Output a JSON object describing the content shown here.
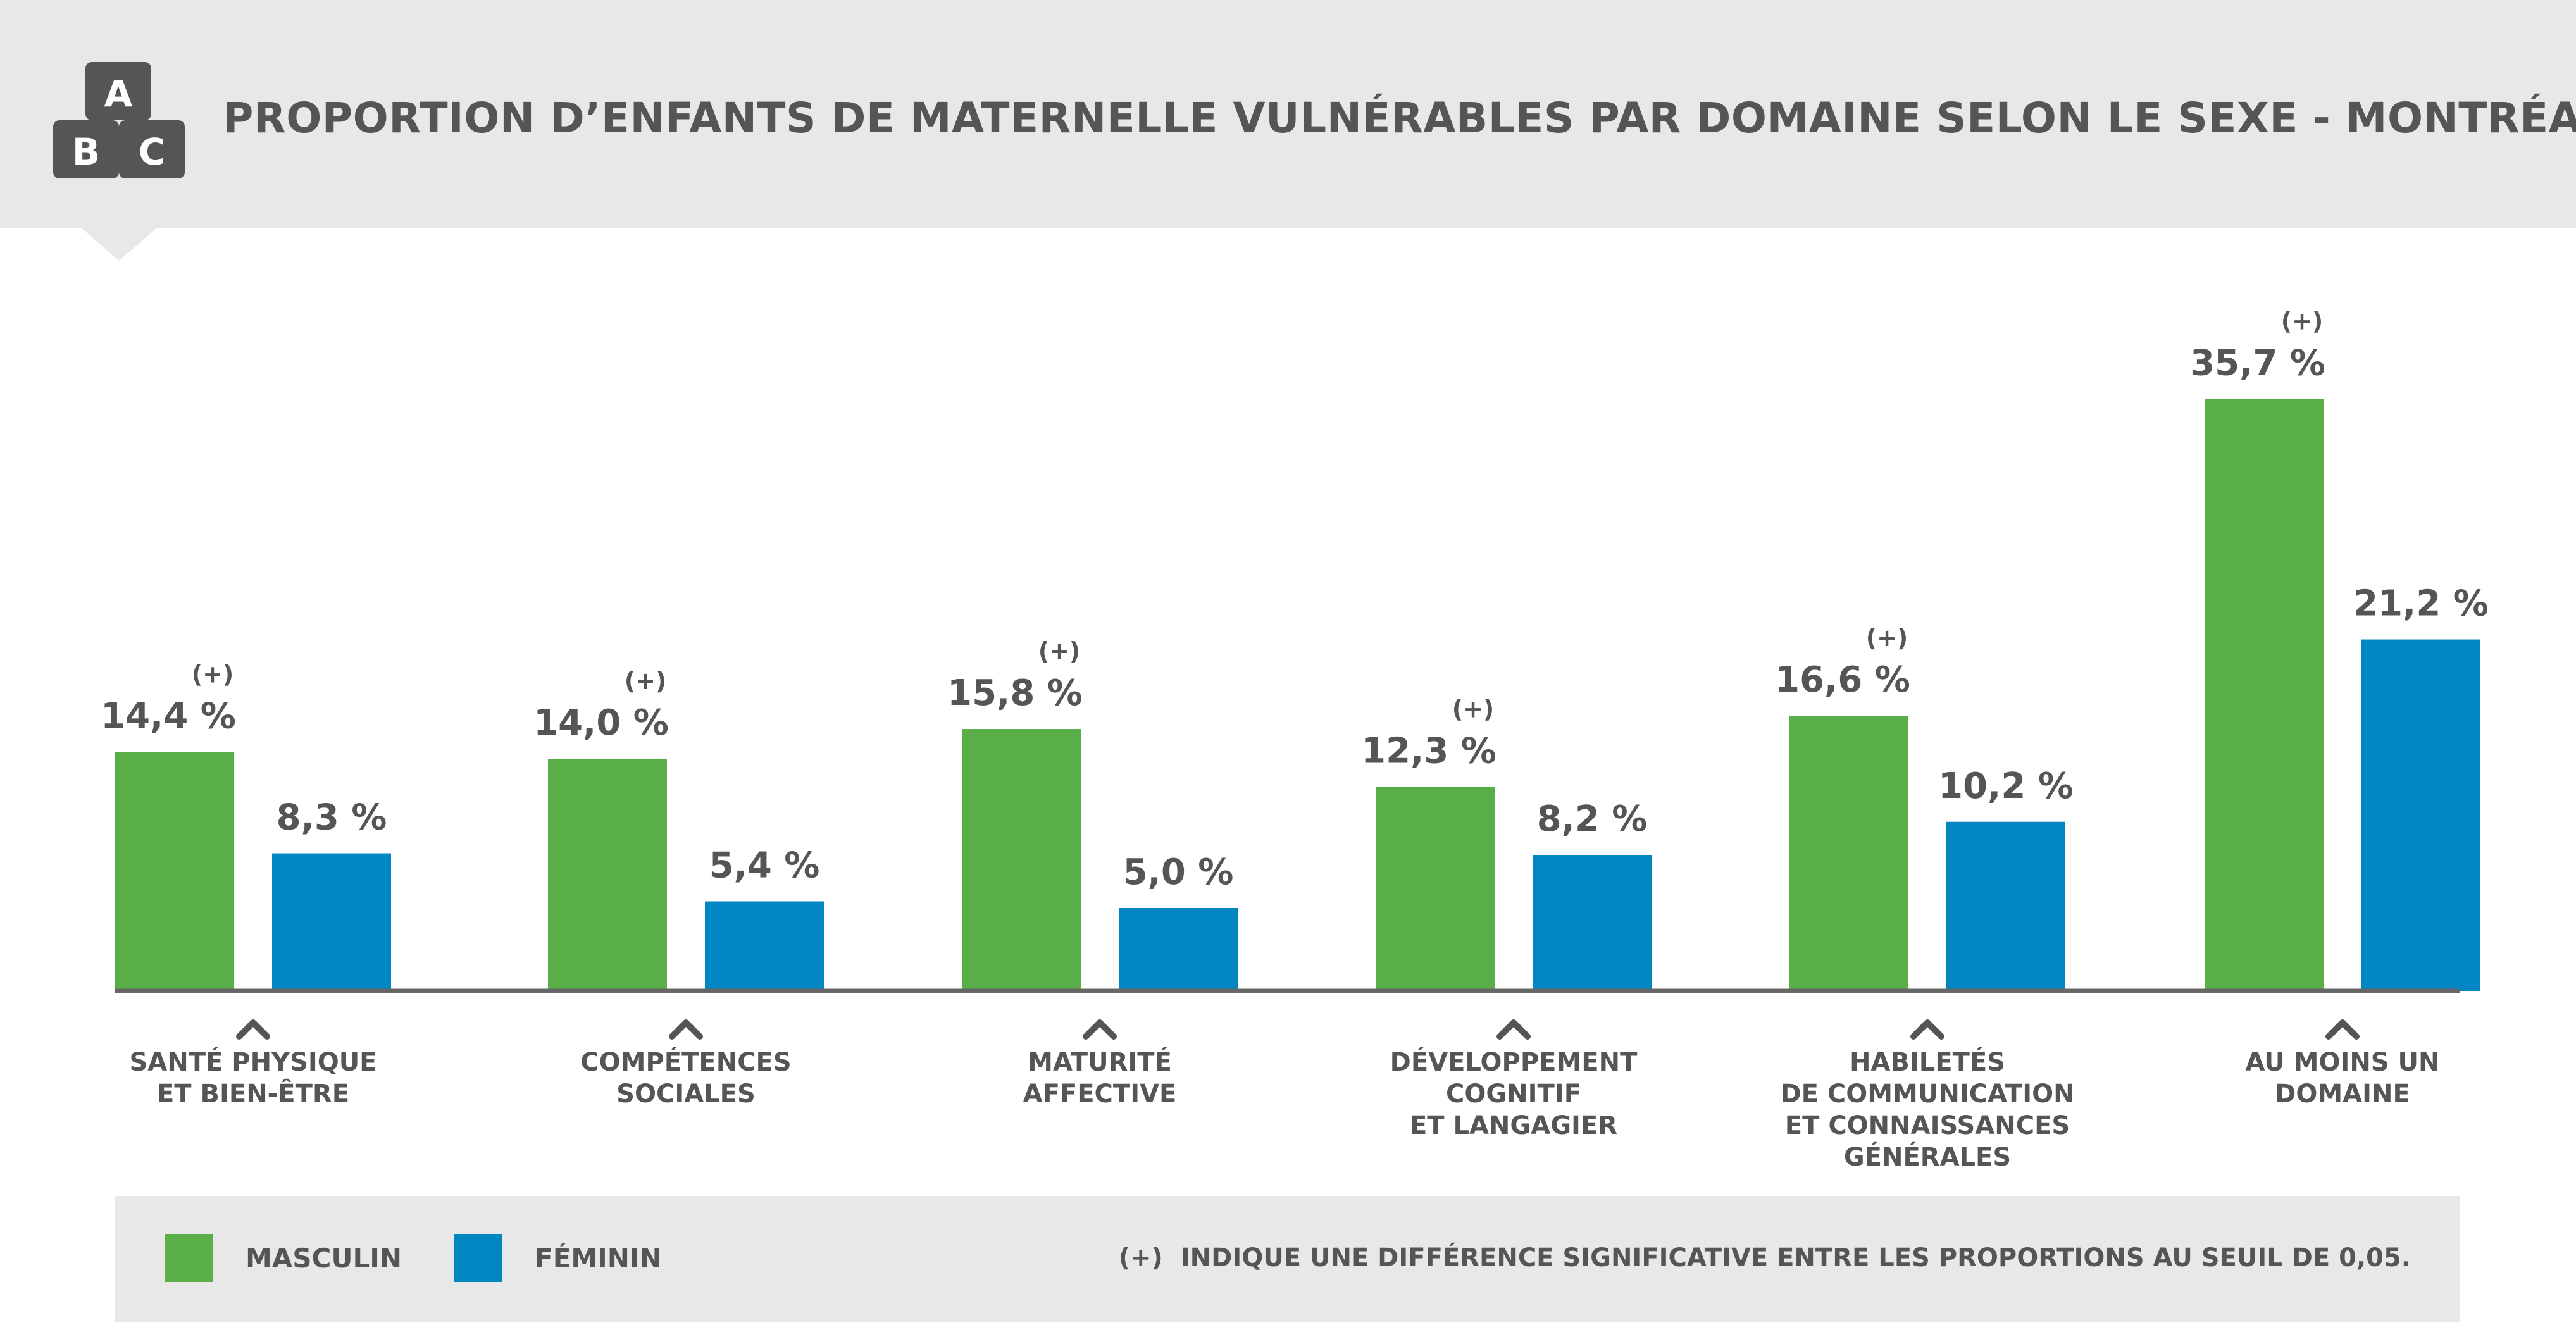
{
  "page": {
    "title": "PROPORTION D’ENFANTS DE MATERNELLE VULNÉRABLES PAR DOMAINE SELON LE SEXE - MONTRÉAL",
    "logo_letters": [
      "A",
      "B",
      "C"
    ]
  },
  "colors": {
    "masculin": "#5aae47",
    "feminin": "#0086c3",
    "text": "#555555",
    "band": "#e8e8e8",
    "axis": "#666666"
  },
  "chart_data": {
    "type": "bar",
    "title": "PROPORTION D’ENFANTS DE MATERNELLE VULNÉRABLES PAR DOMAINE SELON LE SEXE - MONTRÉAL",
    "xlabel": "",
    "ylabel": "",
    "ylim": [
      0,
      40
    ],
    "grid": false,
    "legend_position": "bottom",
    "categories": [
      [
        "SANTÉ PHYSIQUE",
        "ET BIEN-ÊTRE"
      ],
      [
        "COMPÉTENCES",
        "SOCIALES"
      ],
      [
        "MATURITÉ",
        "AFFECTIVE"
      ],
      [
        "DÉVELOPPEMENT",
        "COGNITIF",
        "ET LANGAGIER"
      ],
      [
        "HABILETÉS",
        "DE COMMUNICATION",
        "ET CONNAISSANCES",
        "GÉNÉRALES"
      ],
      [
        "AU MOINS UN",
        "DOMAINE"
      ]
    ],
    "series": [
      {
        "name": "MASCULIN",
        "values": [
          14.4,
          14.0,
          15.8,
          12.3,
          16.6,
          35.7
        ],
        "labels": [
          "14,4 %",
          "14,0 %",
          "15,8 %",
          "12,3 %",
          "16,6 %",
          "35,7 %"
        ],
        "significant": [
          true,
          true,
          true,
          true,
          true,
          true
        ]
      },
      {
        "name": "FÉMININ",
        "values": [
          8.3,
          5.4,
          5.0,
          8.2,
          10.2,
          21.2
        ],
        "labels": [
          "8,3 %",
          "5,4 %",
          "5,0 %",
          "8,2 %",
          "10,2 %",
          "21,2 %"
        ],
        "significant": [
          false,
          false,
          false,
          false,
          false,
          false
        ]
      }
    ],
    "significance_marker": "(+)"
  },
  "legend": {
    "items": [
      {
        "label": "MASCULIN",
        "color": "#5aae47"
      },
      {
        "label": "FÉMININ",
        "color": "#0086c3"
      }
    ],
    "note_marker": "(+)",
    "note_text": "INDIQUE UNE DIFFÉRENCE SIGNIFICATIVE ENTRE LES PROPORTIONS AU SEUIL DE 0,05."
  }
}
